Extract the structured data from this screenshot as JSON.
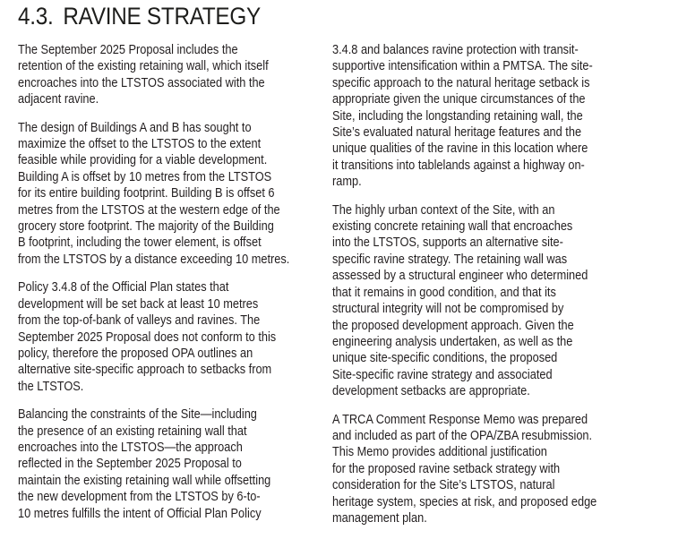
{
  "section": {
    "number": "4.3.",
    "title": "RAVINE STRATEGY"
  },
  "left_column": [
    {
      "lines": [
        "The September 2025 Proposal includes the",
        "retention of the existing retaining wall, which itself",
        "encroaches into the LTSTOS associated with the",
        "adjacent ravine."
      ]
    },
    {
      "lines": [
        "The design of Buildings A and B has sought to",
        "maximize the offset to the LTSTOS to the extent",
        "feasible while providing for a viable development.",
        "Building A is offset by 10 metres from the LTSTOS",
        "for its entire building footprint. Building B is offset 6",
        "metres from the LTSTOS at the western edge of the",
        "grocery store footprint. The majority of the Building",
        "B footprint, including the tower element, is offset",
        "from the LTSTOS by a distance exceeding 10 metres."
      ]
    },
    {
      "lines": [
        "Policy 3.4.8 of the Official Plan states that",
        "development will be set back at least 10 metres",
        "from the top-of-bank of valleys and ravines. The",
        "September 2025 Proposal does not conform to this",
        "policy, therefore the proposed OPA outlines an",
        "alternative site-specific approach to setbacks from",
        "the LTSTOS."
      ]
    },
    {
      "lines": [
        "Balancing the constraints of the Site—including",
        "the presence of an existing retaining wall that",
        "encroaches into the LTSTOS—the approach",
        "reflected in the September 2025 Proposal to",
        "maintain the existing retaining wall while offsetting",
        "the new development from the LTSTOS by 6-to-",
        "10 metres fulfills the intent of Official Plan Policy"
      ]
    }
  ],
  "right_column": [
    {
      "lines": [
        "3.4.8 and balances ravine protection with transit-",
        "supportive intensification within a PMTSA. The site-",
        "specific approach to the natural heritage setback is",
        "appropriate given the unique circumstances of the",
        "Site, including the longstanding retaining wall, the",
        "Site’s evaluated natural heritage features and the",
        "unique qualities of the ravine in this location where",
        "it transitions into tablelands against a highway on-",
        "ramp."
      ]
    },
    {
      "lines": [
        "The highly urban context of the Site, with an",
        "existing concrete retaining wall that encroaches",
        "into the LTSTOS, supports an alternative site-",
        "specific ravine strategy. The retaining wall was",
        "assessed by a structural engineer who determined",
        "that it remains in good condition, and that its",
        "structural integrity will not be compromised by",
        "the proposed development approach. Given the",
        "engineering analysis undertaken, as well as the",
        "unique site-specific conditions, the proposed",
        "Site-specific ravine strategy and associated",
        "development setbacks are appropriate."
      ]
    },
    {
      "lines": [
        "A TRCA Comment Response Memo was prepared",
        "and included as part of the OPA/ZBA resubmission.",
        "This Memo provides additional justification",
        "for the proposed ravine setback strategy with",
        "consideration for the Site’s LTSTOS, natural",
        "heritage system, species at risk, and proposed edge",
        "management plan."
      ]
    }
  ]
}
